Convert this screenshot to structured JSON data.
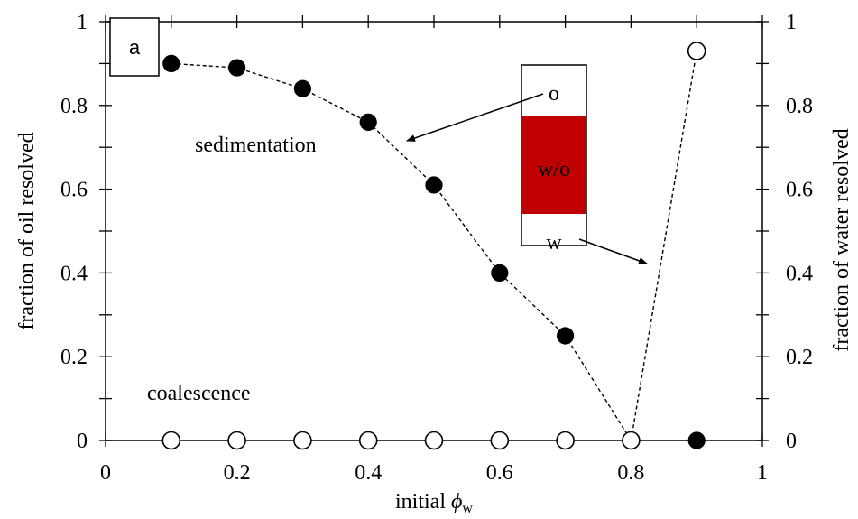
{
  "chart_data": {
    "type": "scatter",
    "panel_label": "a",
    "xlabel_prefix": "initial ",
    "xlabel_symbol": "ϕ",
    "xlabel_subscript": "w",
    "ylabel_left": "fraction of oil resolved",
    "ylabel_right": "fraction of  water resolved",
    "xlim": [
      0,
      1
    ],
    "ylim": [
      0,
      1
    ],
    "x_ticks": [
      "0",
      "0.2",
      "0.4",
      "0.6",
      "0.8",
      "1"
    ],
    "y_ticks": [
      "0",
      "0.2",
      "0.4",
      "0.6",
      "0.8",
      "1"
    ],
    "series": [
      {
        "marker": "filled",
        "line": "dashed",
        "x": [
          0.1,
          0.2,
          0.3,
          0.4,
          0.5,
          0.6,
          0.7,
          0.8
        ],
        "y": [
          0.9,
          0.89,
          0.84,
          0.76,
          0.61,
          0.4,
          0.25,
          0.0
        ]
      },
      {
        "marker": "open",
        "line": "none",
        "x": [
          0.1,
          0.2,
          0.3,
          0.4,
          0.5,
          0.6,
          0.7
        ],
        "y": [
          0,
          0,
          0,
          0,
          0,
          0,
          0
        ]
      },
      {
        "marker": "open",
        "line": "dashed",
        "x": [
          0.8,
          0.9
        ],
        "y": [
          0.0,
          0.93
        ]
      },
      {
        "marker": "filled",
        "line": "none",
        "x": [
          0.9
        ],
        "y": [
          0.0
        ]
      }
    ],
    "annotations": {
      "sedimentation": "sedimentation",
      "coalescence": "coalescence"
    },
    "inset": {
      "top_label": "o",
      "middle_label": "w/o",
      "bottom_label": "w",
      "middle_color": "#C00000"
    },
    "grid": false
  }
}
